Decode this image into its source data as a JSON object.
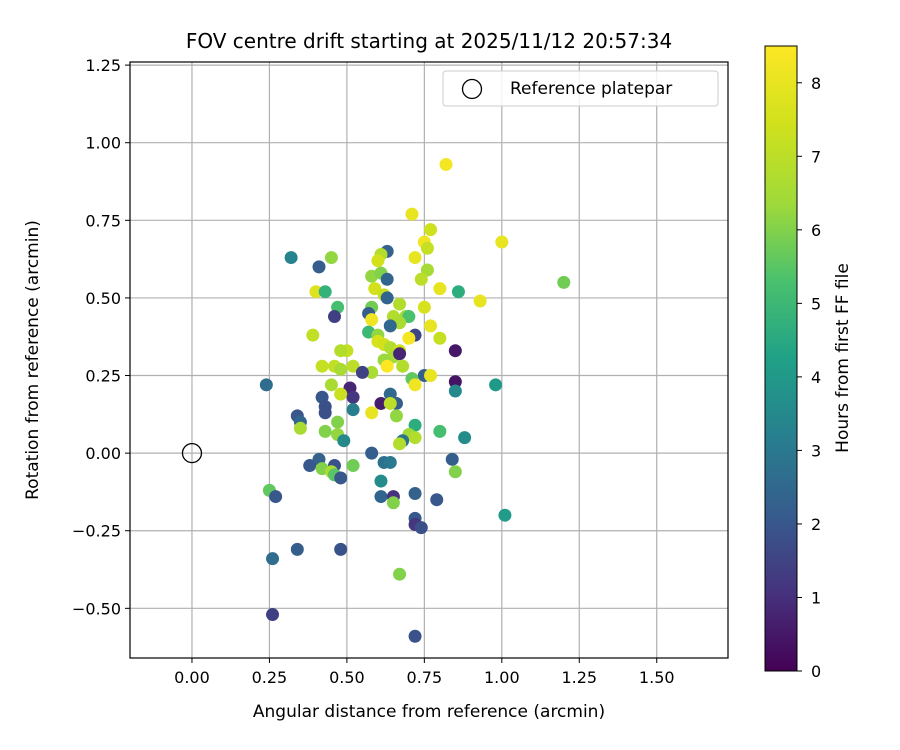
{
  "chart_data": {
    "type": "scatter",
    "title": "FOV centre drift starting at 2025/11/12 20:57:34",
    "xlabel": "Angular distance from reference (arcmin)",
    "ylabel": "Rotation from reference (arcmin)",
    "xlim": [
      -0.2,
      1.73
    ],
    "ylim": [
      -0.66,
      1.26
    ],
    "xticks": [
      0.0,
      0.25,
      0.5,
      0.75,
      1.0,
      1.25,
      1.5
    ],
    "xtick_labels": [
      "0.00",
      "0.25",
      "0.50",
      "0.75",
      "1.00",
      "1.25",
      "1.50"
    ],
    "yticks": [
      -0.5,
      -0.25,
      0.0,
      0.25,
      0.5,
      0.75,
      1.0,
      1.25
    ],
    "ytick_labels": [
      "−0.50",
      "−0.25",
      "0.00",
      "0.25",
      "0.50",
      "0.75",
      "1.00",
      "1.25"
    ],
    "grid": true,
    "legend": {
      "location": "top-right",
      "entries": [
        "Reference platepar"
      ]
    },
    "reference": {
      "x": 0.0,
      "y": 0.0,
      "label": "Reference platepar"
    },
    "colorbar": {
      "label": "Hours from first FF file",
      "range": [
        0,
        8.5
      ],
      "ticks": [
        0,
        1,
        2,
        3,
        4,
        5,
        6,
        7,
        8
      ],
      "tick_labels": [
        "0",
        "1",
        "2",
        "3",
        "4",
        "5",
        "6",
        "7",
        "8"
      ],
      "colormap": "viridis"
    },
    "points": [
      [
        0.82,
        0.93,
        8.3
      ],
      [
        0.71,
        0.77,
        8.0
      ],
      [
        0.77,
        0.72,
        7.4
      ],
      [
        1.0,
        0.68,
        8.0
      ],
      [
        0.75,
        0.68,
        8.2
      ],
      [
        0.76,
        0.66,
        7.2
      ],
      [
        0.72,
        0.63,
        8.0
      ],
      [
        0.45,
        0.63,
        6.2
      ],
      [
        0.32,
        0.63,
        3.3
      ],
      [
        0.63,
        0.65,
        2.3
      ],
      [
        0.61,
        0.64,
        6.8
      ],
      [
        0.6,
        0.62,
        7.5
      ],
      [
        0.41,
        0.6,
        2.2
      ],
      [
        0.76,
        0.59,
        6.5
      ],
      [
        0.58,
        0.57,
        6.2
      ],
      [
        0.61,
        0.58,
        6.0
      ],
      [
        0.63,
        0.56,
        2.4
      ],
      [
        0.74,
        0.56,
        7.0
      ],
      [
        1.2,
        0.55,
        5.8
      ],
      [
        0.59,
        0.53,
        7.5
      ],
      [
        0.62,
        0.51,
        7.2
      ],
      [
        0.63,
        0.5,
        2.4
      ],
      [
        0.4,
        0.52,
        7.8
      ],
      [
        0.43,
        0.52,
        4.8
      ],
      [
        0.8,
        0.53,
        8.0
      ],
      [
        0.86,
        0.52,
        4.6
      ],
      [
        0.93,
        0.49,
        8.0
      ],
      [
        0.67,
        0.48,
        6.8
      ],
      [
        0.58,
        0.47,
        5.8
      ],
      [
        0.47,
        0.47,
        5.2
      ],
      [
        0.75,
        0.47,
        7.6
      ],
      [
        0.57,
        0.45,
        2.2
      ],
      [
        0.65,
        0.44,
        6.8
      ],
      [
        0.69,
        0.44,
        6.4
      ],
      [
        0.7,
        0.44,
        5.3
      ],
      [
        0.46,
        0.44,
        1.4
      ],
      [
        0.58,
        0.43,
        8.2
      ],
      [
        0.67,
        0.42,
        6.6
      ],
      [
        0.64,
        0.41,
        2.5
      ],
      [
        0.77,
        0.41,
        8.0
      ],
      [
        0.57,
        0.39,
        5.0
      ],
      [
        0.6,
        0.38,
        6.2
      ],
      [
        0.39,
        0.38,
        7.1
      ],
      [
        0.72,
        0.38,
        1.6
      ],
      [
        0.6,
        0.36,
        7.6
      ],
      [
        0.7,
        0.37,
        8.3
      ],
      [
        0.8,
        0.37,
        7.2
      ],
      [
        0.62,
        0.35,
        7.5
      ],
      [
        0.64,
        0.34,
        6.8
      ],
      [
        0.67,
        0.33,
        7.4
      ],
      [
        0.85,
        0.33,
        0.5
      ],
      [
        0.5,
        0.33,
        7.2
      ],
      [
        0.48,
        0.33,
        6.8
      ],
      [
        0.65,
        0.31,
        6.5
      ],
      [
        0.62,
        0.3,
        6.3
      ],
      [
        0.67,
        0.32,
        0.8
      ],
      [
        0.42,
        0.28,
        7.2
      ],
      [
        0.46,
        0.28,
        7.1
      ],
      [
        0.52,
        0.28,
        7.0
      ],
      [
        0.68,
        0.28,
        6.8
      ],
      [
        0.63,
        0.28,
        8.5
      ],
      [
        0.48,
        0.27,
        6.6
      ],
      [
        0.58,
        0.26,
        6.6
      ],
      [
        0.55,
        0.26,
        1.5
      ],
      [
        0.75,
        0.25,
        2.2
      ],
      [
        0.77,
        0.25,
        8.0
      ],
      [
        0.71,
        0.24,
        5.6
      ],
      [
        0.72,
        0.22,
        8.2
      ],
      [
        0.85,
        0.23,
        0.4
      ],
      [
        0.98,
        0.22,
        4.0
      ],
      [
        0.24,
        0.22,
        2.6
      ],
      [
        0.45,
        0.22,
        6.6
      ],
      [
        0.51,
        0.21,
        0.8
      ],
      [
        0.85,
        0.2,
        3.5
      ],
      [
        0.48,
        0.19,
        7.3
      ],
      [
        0.64,
        0.19,
        2.5
      ],
      [
        0.42,
        0.18,
        2.0
      ],
      [
        0.52,
        0.18,
        1.2
      ],
      [
        0.61,
        0.16,
        0.6
      ],
      [
        0.66,
        0.16,
        2.2
      ],
      [
        0.64,
        0.16,
        7.0
      ],
      [
        0.43,
        0.15,
        1.8
      ],
      [
        0.52,
        0.14,
        3.2
      ],
      [
        0.34,
        0.12,
        2.0
      ],
      [
        0.43,
        0.13,
        1.8
      ],
      [
        0.58,
        0.13,
        8.0
      ],
      [
        0.66,
        0.12,
        6.2
      ],
      [
        0.35,
        0.1,
        2.4
      ],
      [
        0.47,
        0.1,
        6.0
      ],
      [
        0.72,
        0.09,
        4.6
      ],
      [
        0.35,
        0.08,
        6.6
      ],
      [
        0.43,
        0.07,
        6.0
      ],
      [
        0.8,
        0.07,
        5.2
      ],
      [
        0.47,
        0.06,
        6.2
      ],
      [
        0.7,
        0.06,
        6.4
      ],
      [
        0.72,
        0.05,
        6.8
      ],
      [
        0.49,
        0.04,
        3.5
      ],
      [
        0.88,
        0.05,
        3.6
      ],
      [
        0.68,
        0.04,
        2.8
      ],
      [
        0.67,
        0.03,
        6.8
      ],
      [
        0.58,
        0.0,
        2.2
      ],
      [
        0.84,
        -0.02,
        2.2
      ],
      [
        0.62,
        -0.03,
        2.8
      ],
      [
        0.64,
        -0.03,
        3.0
      ],
      [
        0.41,
        -0.02,
        2.3
      ],
      [
        0.38,
        -0.04,
        2.0
      ],
      [
        0.46,
        -0.04,
        1.9
      ],
      [
        0.52,
        -0.04,
        5.8
      ],
      [
        0.42,
        -0.05,
        6.0
      ],
      [
        0.45,
        -0.06,
        6.6
      ],
      [
        0.85,
        -0.06,
        6.0
      ],
      [
        0.46,
        -0.07,
        5.5
      ],
      [
        0.48,
        -0.08,
        2.0
      ],
      [
        0.61,
        -0.09,
        3.6
      ],
      [
        0.25,
        -0.12,
        5.6
      ],
      [
        0.27,
        -0.14,
        2.0
      ],
      [
        0.61,
        -0.14,
        2.4
      ],
      [
        0.65,
        -0.14,
        1.1
      ],
      [
        0.72,
        -0.13,
        2.3
      ],
      [
        0.79,
        -0.15,
        2.0
      ],
      [
        0.65,
        -0.16,
        6.0
      ],
      [
        1.01,
        -0.2,
        4.1
      ],
      [
        0.72,
        -0.21,
        2.0
      ],
      [
        0.72,
        -0.23,
        1.2
      ],
      [
        0.74,
        -0.24,
        1.8
      ],
      [
        0.26,
        -0.34,
        2.6
      ],
      [
        0.34,
        -0.31,
        2.2
      ],
      [
        0.48,
        -0.31,
        1.9
      ],
      [
        0.67,
        -0.39,
        6.0
      ],
      [
        0.26,
        -0.52,
        1.4
      ],
      [
        0.72,
        -0.59,
        1.9
      ]
    ]
  }
}
